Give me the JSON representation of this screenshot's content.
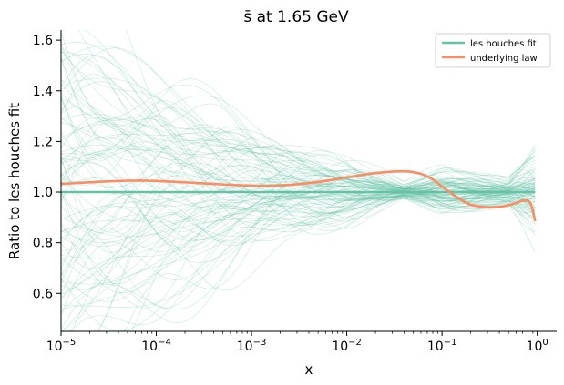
{
  "chart_data": {
    "type": "line",
    "title": "s̄ at 1.65 GeV",
    "xlabel": "x",
    "ylabel": "Ratio to les houches fit",
    "xscale": "log",
    "xlim": [
      1e-05,
      1.6
    ],
    "ylim": [
      0.45,
      1.64
    ],
    "x_ticks": [
      {
        "value": 1e-05,
        "base": "10",
        "exp": "−5"
      },
      {
        "value": 0.0001,
        "base": "10",
        "exp": "−4"
      },
      {
        "value": 0.001,
        "base": "10",
        "exp": "−3"
      },
      {
        "value": 0.01,
        "base": "10",
        "exp": "−2"
      },
      {
        "value": 0.1,
        "base": "10",
        "exp": "−1"
      },
      {
        "value": 1,
        "base": "10",
        "exp": "0"
      }
    ],
    "y_ticks": [
      {
        "value": 0.6,
        "label": "0.6"
      },
      {
        "value": 0.8,
        "label": "0.8"
      },
      {
        "value": 1.0,
        "label": "1.0"
      },
      {
        "value": 1.2,
        "label": "1.2"
      },
      {
        "value": 1.4,
        "label": "1.4"
      },
      {
        "value": 1.6,
        "label": "1.6"
      }
    ],
    "legend_position": "top-right",
    "series": [
      {
        "name": "les houches fit",
        "color": "#66c2a5",
        "x": [
          1e-05,
          0.0001,
          0.001,
          0.01,
          0.1,
          0.3,
          0.6,
          0.95
        ],
        "y": [
          1.0,
          1.0,
          1.0,
          1.0,
          1.0,
          1.0,
          1.0,
          1.0
        ]
      },
      {
        "name": "underlying law",
        "color": "#fc8d62",
        "x": [
          1e-05,
          3e-05,
          6e-05,
          0.0001,
          0.0003,
          0.001,
          0.002,
          0.005,
          0.01,
          0.02,
          0.04,
          0.06,
          0.08,
          0.1,
          0.15,
          0.2,
          0.3,
          0.4,
          0.5,
          0.6,
          0.7,
          0.8,
          0.85,
          0.9,
          0.95
        ],
        "y": [
          1.032,
          1.042,
          1.045,
          1.044,
          1.035,
          1.025,
          1.026,
          1.04,
          1.058,
          1.075,
          1.082,
          1.072,
          1.05,
          1.022,
          0.975,
          0.95,
          0.94,
          0.942,
          0.948,
          0.957,
          0.966,
          0.966,
          0.955,
          0.925,
          0.885
        ]
      }
    ],
    "replicas": {
      "color": "#66c2a5",
      "count": 100,
      "description_of_spread_x": [
        1e-05,
        0.0001,
        0.001,
        0.01,
        0.04,
        0.1,
        0.5,
        0.95
      ],
      "spread_halfwidth": [
        0.6,
        0.45,
        0.3,
        0.18,
        0.04,
        0.12,
        0.09,
        0.3
      ]
    }
  }
}
